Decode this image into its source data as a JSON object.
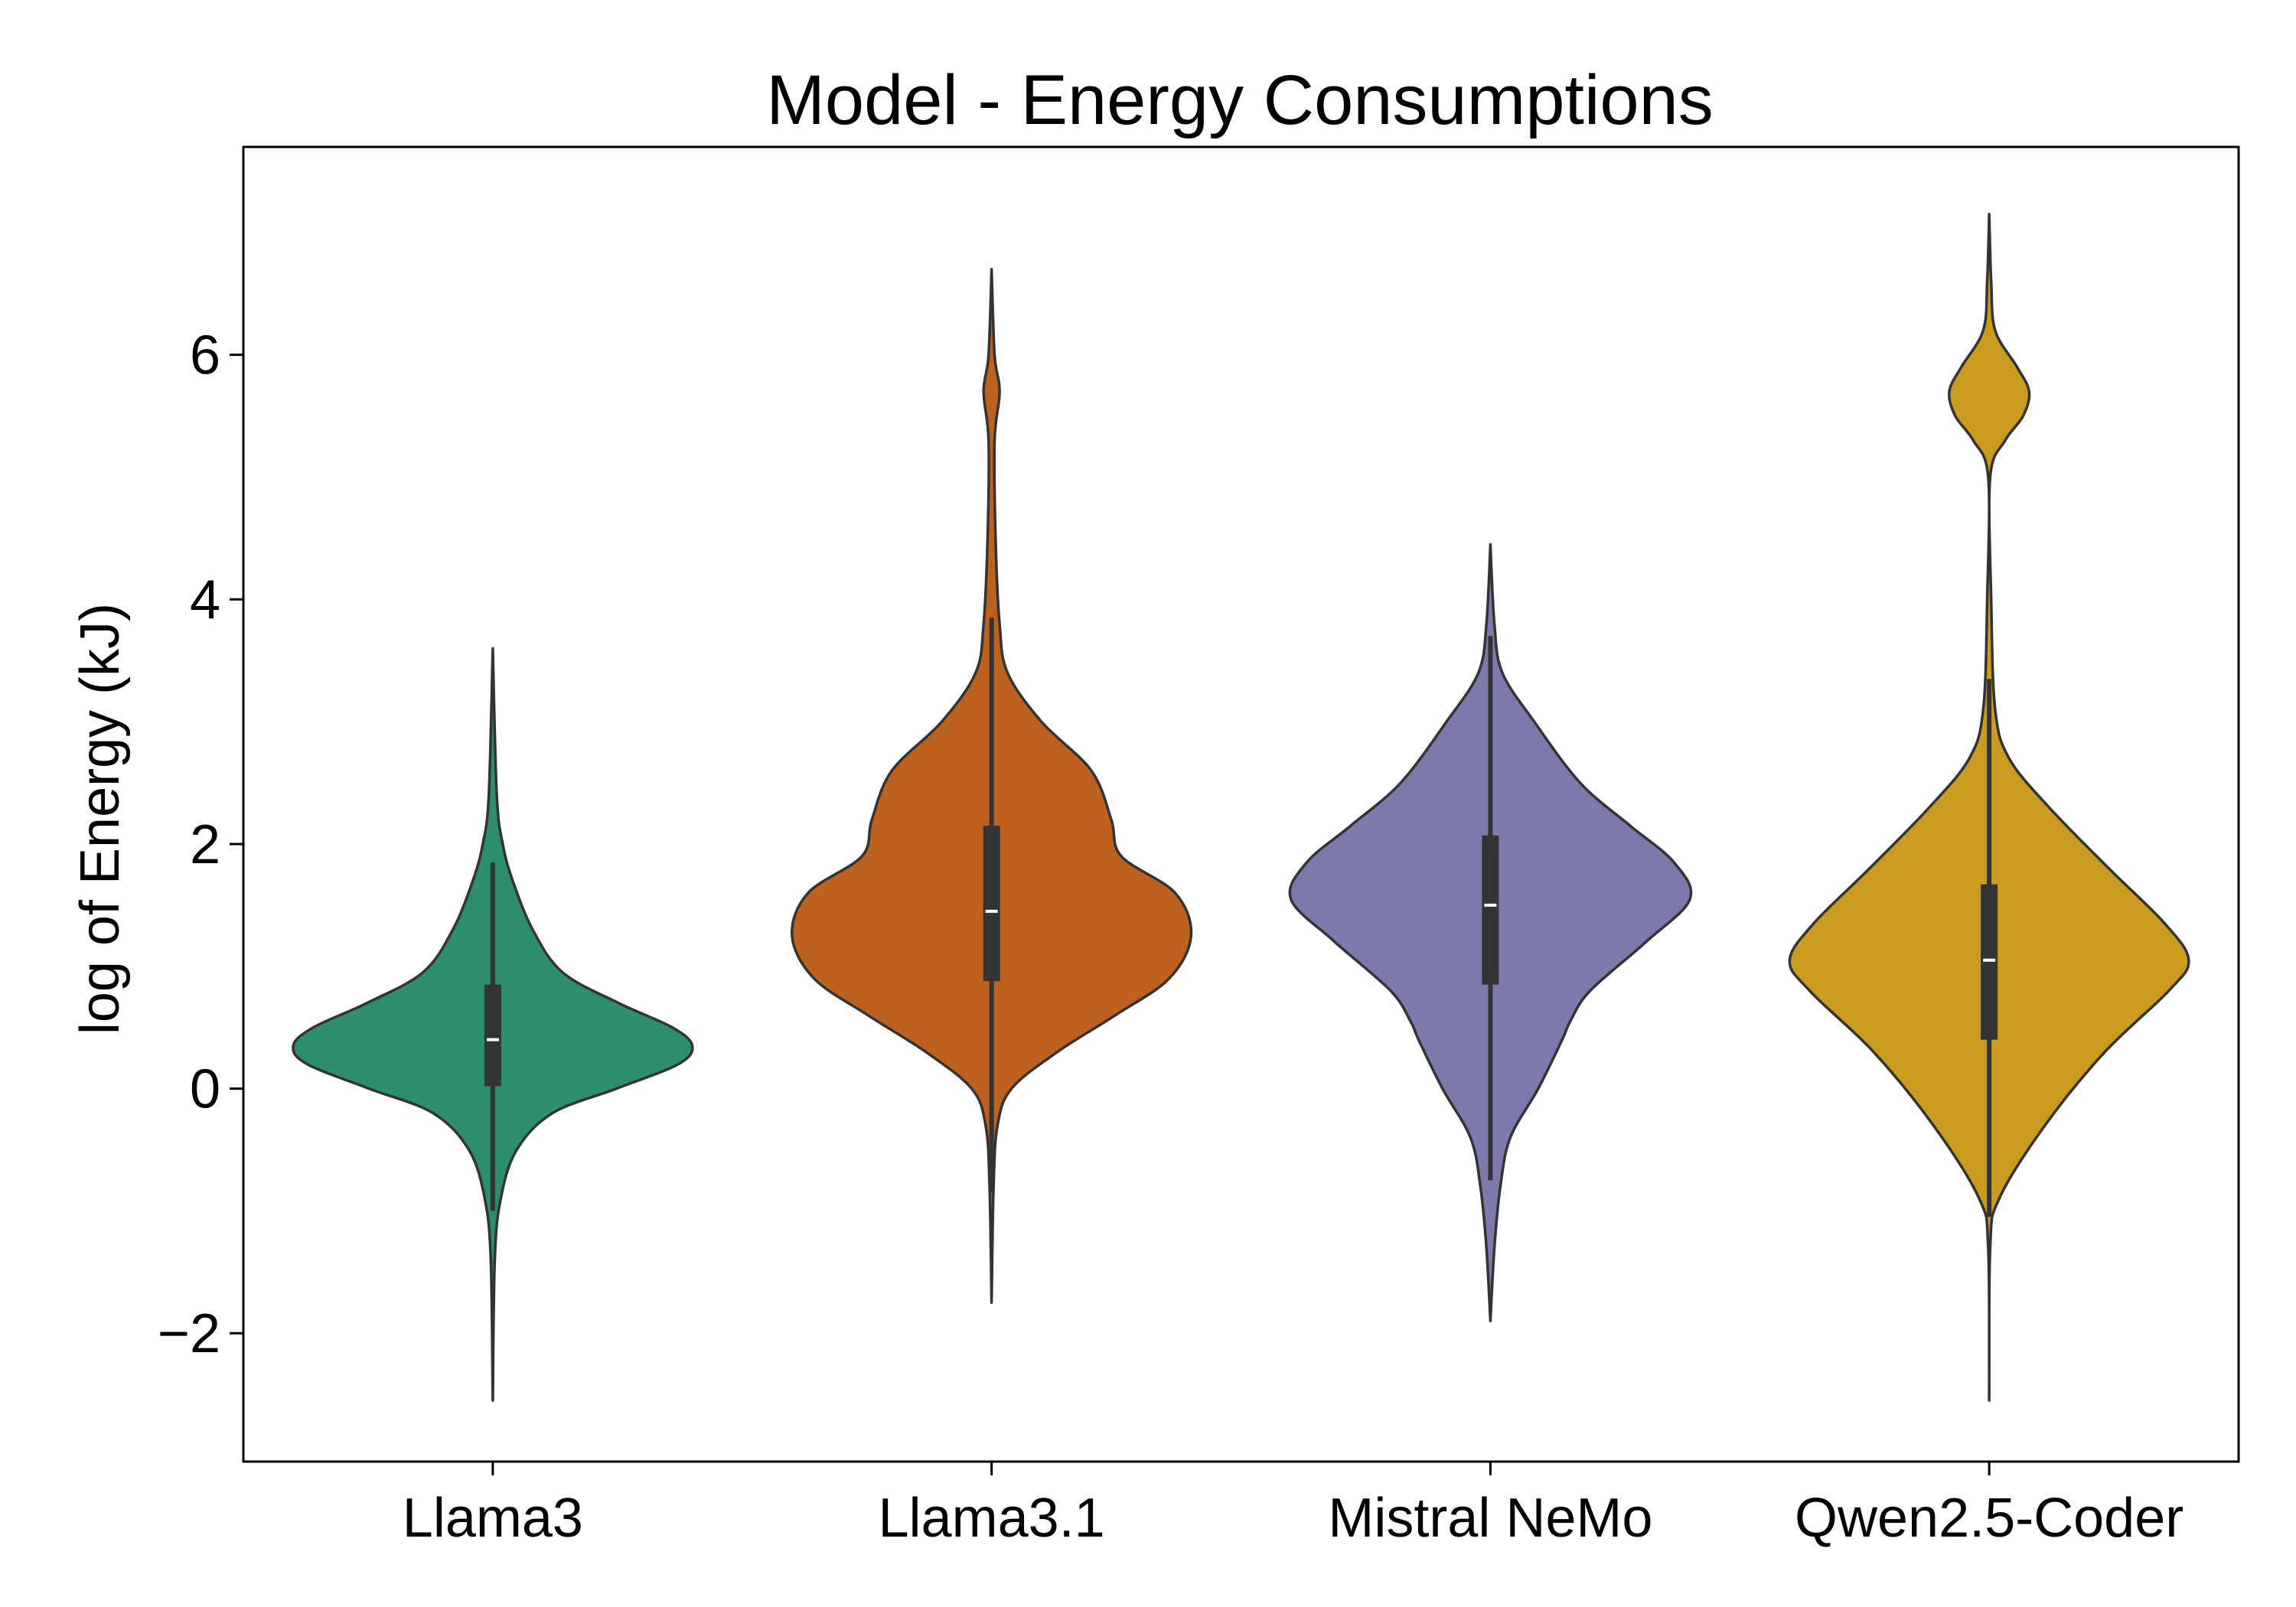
{
  "chart_data": {
    "type": "violin",
    "title": "Model - Energy Consumptions",
    "xlabel": "",
    "ylabel": "log of Energy (kJ)",
    "ylim": [
      -3.05,
      7.7
    ],
    "yticks": [
      -2,
      0,
      2,
      4,
      6
    ],
    "ytick_labels": [
      "−2",
      "0",
      "2",
      "4",
      "6"
    ],
    "grid": false,
    "legend": "none",
    "categories": [
      "Llama3",
      "Llama3.1",
      "Mistral NeMo",
      "Qwen2.5-Coder"
    ],
    "series": [
      {
        "category": "Llama3",
        "color": "#2d8d6f",
        "min": -2.55,
        "q1": 0.02,
        "median": 0.4,
        "q3": 0.85,
        "max": 3.6,
        "whisker_low": -1.0,
        "whisker_high": 1.85,
        "density": [
          [
            -2.55,
            0.0
          ],
          [
            -1.4,
            0.01
          ],
          [
            -0.9,
            0.04
          ],
          [
            -0.5,
            0.12
          ],
          [
            -0.2,
            0.3
          ],
          [
            0.0,
            0.62
          ],
          [
            0.2,
            0.93
          ],
          [
            0.35,
            1.0
          ],
          [
            0.5,
            0.9
          ],
          [
            0.7,
            0.63
          ],
          [
            0.95,
            0.35
          ],
          [
            1.3,
            0.2
          ],
          [
            1.7,
            0.1
          ],
          [
            2.0,
            0.05
          ],
          [
            2.4,
            0.02
          ],
          [
            3.6,
            0.0
          ]
        ]
      },
      {
        "category": "Llama3.1",
        "color": "#bd611f",
        "min": -1.75,
        "q1": 0.88,
        "median": 1.45,
        "q3": 2.15,
        "max": 6.7,
        "whisker_low": -0.85,
        "whisker_high": 3.85,
        "density": [
          [
            -1.75,
            0.0
          ],
          [
            -0.8,
            0.01
          ],
          [
            -0.3,
            0.03
          ],
          [
            0.0,
            0.1
          ],
          [
            0.3,
            0.33
          ],
          [
            0.6,
            0.62
          ],
          [
            0.9,
            0.89
          ],
          [
            1.25,
            1.0
          ],
          [
            1.6,
            0.92
          ],
          [
            1.9,
            0.65
          ],
          [
            2.2,
            0.6
          ],
          [
            2.6,
            0.5
          ],
          [
            3.0,
            0.25
          ],
          [
            3.4,
            0.08
          ],
          [
            3.8,
            0.04
          ],
          [
            4.5,
            0.02
          ],
          [
            5.3,
            0.015
          ],
          [
            5.7,
            0.04
          ],
          [
            6.0,
            0.015
          ],
          [
            6.7,
            0.0
          ]
        ]
      },
      {
        "category": "Mistral NeMo",
        "color": "#7d79ad",
        "min": -1.9,
        "q1": 0.85,
        "median": 1.5,
        "q3": 2.07,
        "max": 4.45,
        "whisker_low": -0.75,
        "whisker_high": 3.7,
        "density": [
          [
            -1.9,
            0.0
          ],
          [
            -1.3,
            0.02
          ],
          [
            -0.8,
            0.05
          ],
          [
            -0.4,
            0.1
          ],
          [
            0.0,
            0.24
          ],
          [
            0.4,
            0.36
          ],
          [
            0.55,
            0.4
          ],
          [
            0.8,
            0.5
          ],
          [
            1.2,
            0.78
          ],
          [
            1.55,
            1.0
          ],
          [
            1.85,
            0.92
          ],
          [
            2.15,
            0.7
          ],
          [
            2.5,
            0.45
          ],
          [
            3.0,
            0.22
          ],
          [
            3.4,
            0.06
          ],
          [
            3.8,
            0.02
          ],
          [
            4.45,
            0.0
          ]
        ]
      },
      {
        "category": "Qwen2.5-Coder",
        "color": "#c99b1f",
        "min": -2.55,
        "q1": 0.4,
        "median": 1.05,
        "q3": 1.67,
        "max": 7.15,
        "whisker_low": -1.05,
        "whisker_high": 3.35,
        "density": [
          [
            -2.55,
            0.0
          ],
          [
            -1.3,
            0.005
          ],
          [
            -0.9,
            0.05
          ],
          [
            -0.3,
            0.28
          ],
          [
            0.3,
            0.58
          ],
          [
            0.8,
            0.9
          ],
          [
            1.05,
            1.0
          ],
          [
            1.35,
            0.88
          ],
          [
            1.8,
            0.6
          ],
          [
            2.3,
            0.3
          ],
          [
            2.7,
            0.1
          ],
          [
            3.1,
            0.03
          ],
          [
            4.0,
            0.01
          ],
          [
            5.0,
            0.005
          ],
          [
            5.3,
            0.08
          ],
          [
            5.5,
            0.17
          ],
          [
            5.7,
            0.2
          ],
          [
            5.9,
            0.14
          ],
          [
            6.2,
            0.03
          ],
          [
            6.6,
            0.01
          ],
          [
            7.15,
            0.0
          ]
        ]
      }
    ]
  }
}
